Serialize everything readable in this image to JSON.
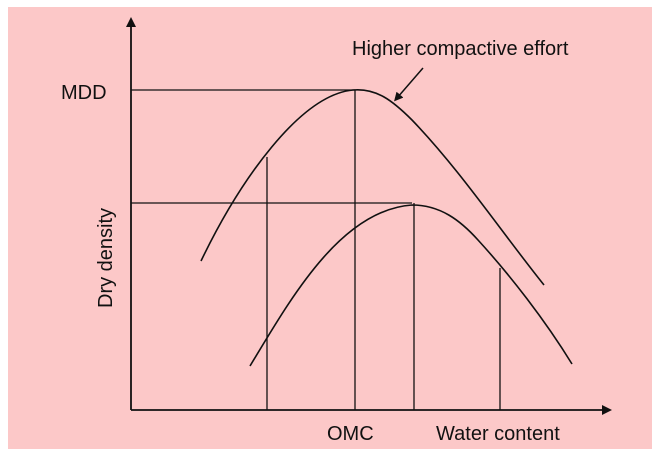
{
  "diagram": {
    "annotation": "Higher compactive effort",
    "y_axis_label": "Dry density",
    "y_tick_label": "MDD",
    "x_tick_label": "OMC",
    "x_axis_label": "Water content",
    "colors": {
      "background": "#fcc8c8",
      "frame": "#ffffff",
      "ink": "#111111"
    }
  }
}
